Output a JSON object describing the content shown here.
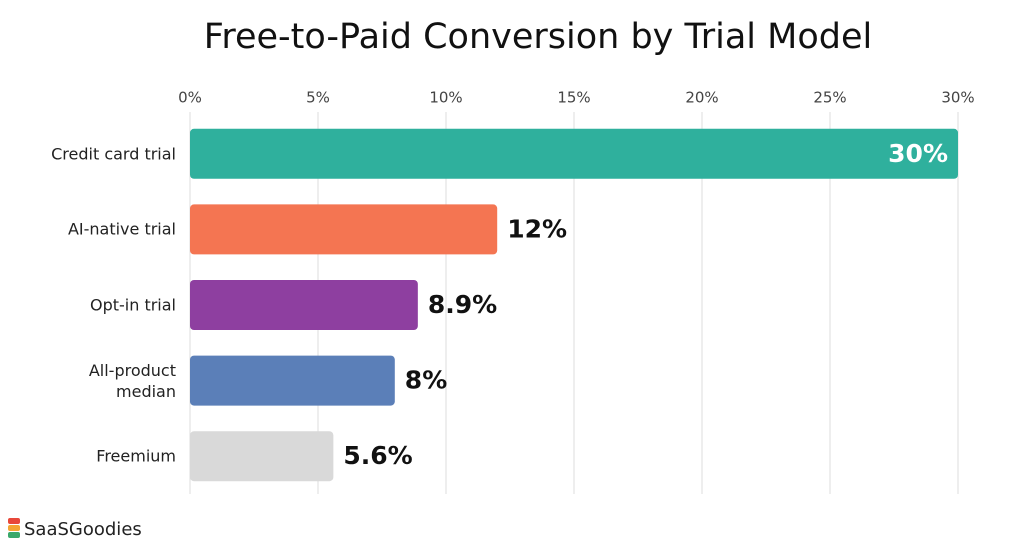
{
  "chart_data": {
    "type": "bar",
    "orientation": "horizontal",
    "title": "Free-to-Paid Conversion by Trial Model",
    "categories": [
      "Credit card trial",
      "AI-native trial",
      "Opt-in trial",
      "All-product\nmedian",
      "Freemium"
    ],
    "values": [
      30,
      12,
      8.9,
      8,
      5.6
    ],
    "value_labels": [
      "30%",
      "12%",
      "8.9%",
      "8%",
      "5.6%"
    ],
    "colors": [
      "#2fb09d",
      "#f47552",
      "#8e3fa0",
      "#5b7fb8",
      "#d9d9d9"
    ],
    "xlim": [
      0,
      30
    ],
    "xticks": [
      {
        "value": 0,
        "label": "0%"
      },
      {
        "value": 5,
        "label": "5%"
      },
      {
        "value": 10,
        "label": "10%"
      },
      {
        "value": 15,
        "label": "15%"
      },
      {
        "value": 20,
        "label": "20%"
      },
      {
        "value": 25,
        "label": "25%"
      },
      {
        "value": 30,
        "label": "30%"
      }
    ],
    "grid": true
  },
  "brand": "SaaSGoodies"
}
